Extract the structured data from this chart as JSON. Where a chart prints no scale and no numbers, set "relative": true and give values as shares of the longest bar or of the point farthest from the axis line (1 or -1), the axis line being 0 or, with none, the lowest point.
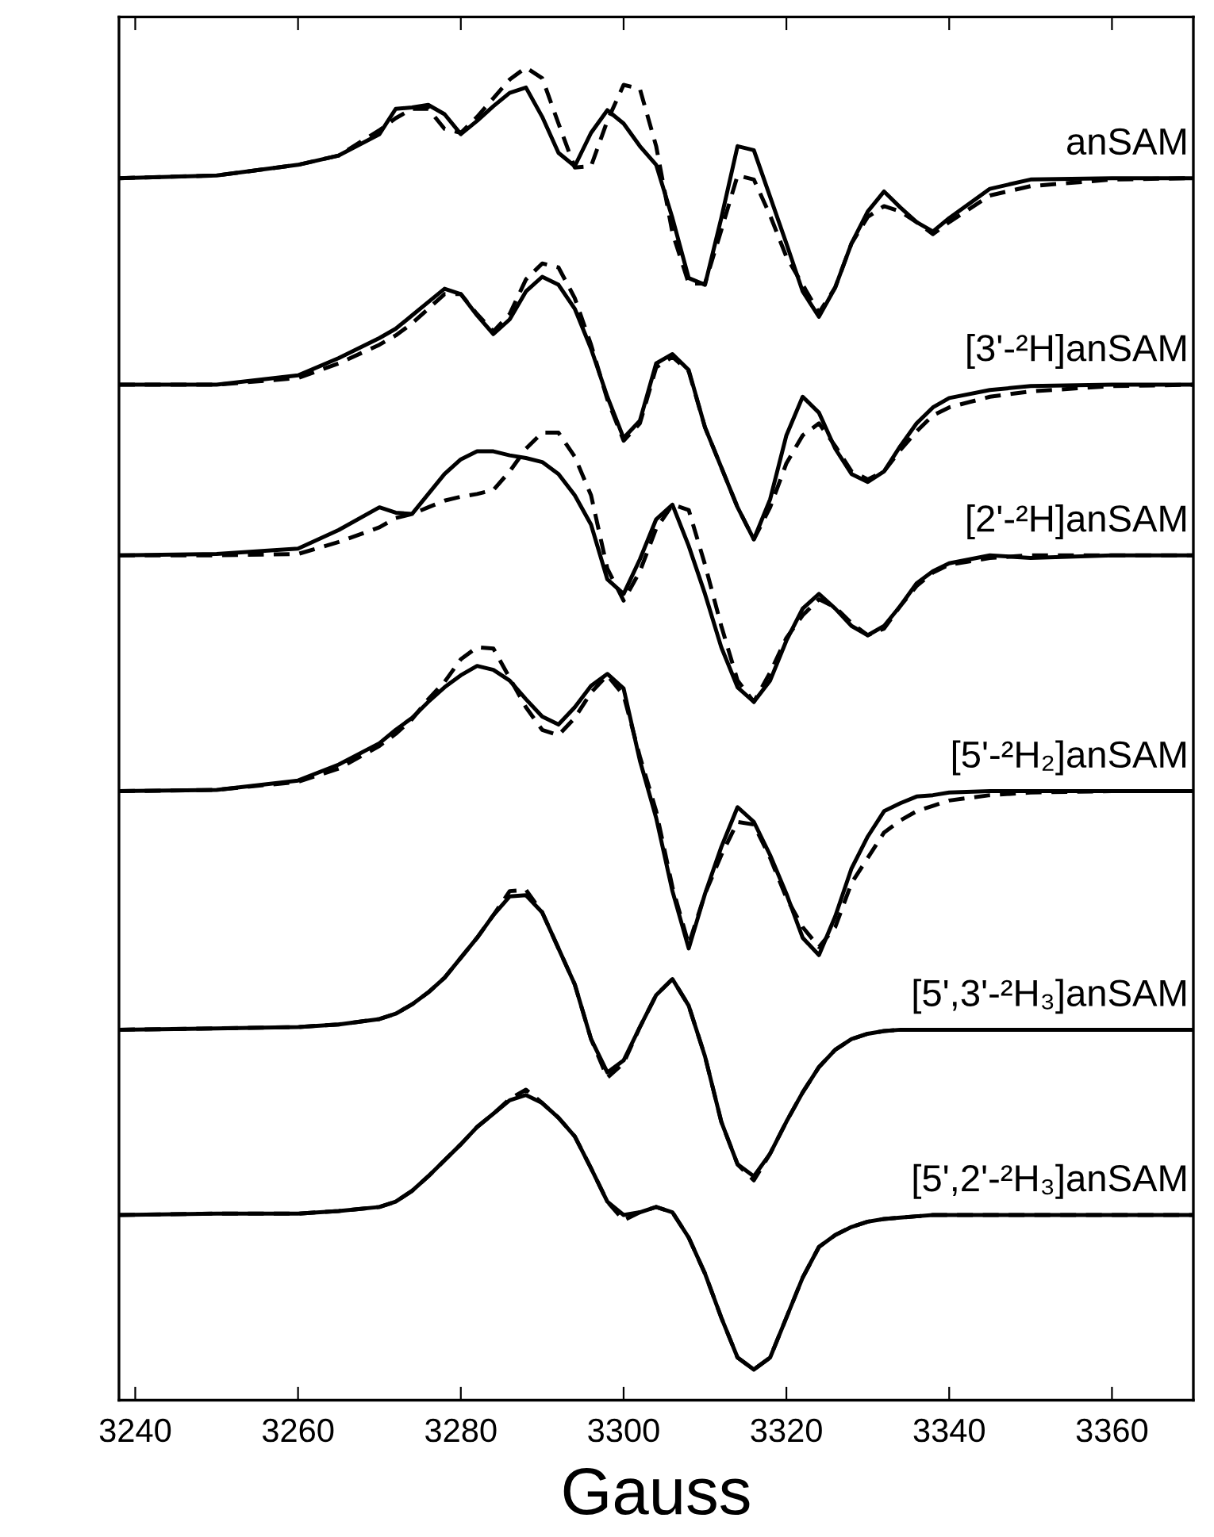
{
  "chart_data": {
    "type": "line",
    "xlabel": "Gauss",
    "relative": true,
    "tick_labels": "x",
    "grid": false,
    "xlim": [
      3238,
      3370
    ],
    "xticks": [
      3240,
      3260,
      3280,
      3300,
      3320,
      3340,
      3360
    ],
    "x": [
      3238,
      3250,
      3260,
      3265,
      3270,
      3272,
      3274,
      3276,
      3278,
      3280,
      3282,
      3284,
      3286,
      3288,
      3290,
      3292,
      3294,
      3296,
      3298,
      3300,
      3302,
      3304,
      3306,
      3308,
      3310,
      3312,
      3314,
      3316,
      3318,
      3320,
      3322,
      3324,
      3326,
      3328,
      3330,
      3332,
      3334,
      3336,
      3338,
      3340,
      3345,
      3350,
      3360,
      3370
    ],
    "series": [
      {
        "name": "anSAM",
        "color": "#000000",
        "line_style": "solid",
        "values": [
          0.917,
          0.919,
          0.927,
          0.934,
          0.95,
          0.969,
          0.97,
          0.972,
          0.965,
          0.95,
          0.96,
          0.971,
          0.981,
          0.985,
          0.963,
          0.936,
          0.926,
          0.951,
          0.968,
          0.958,
          0.941,
          0.927,
          0.887,
          0.842,
          0.837,
          0.887,
          0.941,
          0.938,
          0.903,
          0.868,
          0.832,
          0.813,
          0.835,
          0.868,
          0.892,
          0.907,
          0.895,
          0.884,
          0.877,
          0.887,
          0.909,
          0.916,
          0.917,
          0.917
        ]
      },
      {
        "color": "#000000",
        "line_style": "dashed",
        "values": [
          0.917,
          0.919,
          0.927,
          0.934,
          0.953,
          0.962,
          0.969,
          0.969,
          0.954,
          0.951,
          0.963,
          0.977,
          0.991,
          1.0,
          0.992,
          0.958,
          0.925,
          0.926,
          0.96,
          0.987,
          0.984,
          0.941,
          0.876,
          0.838,
          0.838,
          0.878,
          0.919,
          0.916,
          0.889,
          0.858,
          0.837,
          0.816,
          0.835,
          0.868,
          0.888,
          0.896,
          0.892,
          0.884,
          0.875,
          0.884,
          0.904,
          0.911,
          0.916,
          0.917
        ]
      },
      {
        "name": "[3'-²H]anSAM",
        "color": "#000000",
        "line_style": "solid",
        "values": [
          0.762,
          0.762,
          0.769,
          0.782,
          0.797,
          0.804,
          0.814,
          0.824,
          0.834,
          0.83,
          0.814,
          0.8,
          0.811,
          0.832,
          0.843,
          0.837,
          0.819,
          0.789,
          0.753,
          0.722,
          0.735,
          0.778,
          0.785,
          0.773,
          0.73,
          0.7,
          0.67,
          0.646,
          0.676,
          0.724,
          0.753,
          0.741,
          0.714,
          0.695,
          0.689,
          0.697,
          0.716,
          0.733,
          0.745,
          0.752,
          0.758,
          0.761,
          0.762,
          0.762
        ]
      },
      {
        "color": "#000000",
        "line_style": "dashed",
        "values": [
          0.762,
          0.762,
          0.767,
          0.778,
          0.792,
          0.799,
          0.808,
          0.819,
          0.83,
          0.83,
          0.815,
          0.802,
          0.815,
          0.841,
          0.853,
          0.85,
          0.827,
          0.792,
          0.751,
          0.72,
          0.733,
          0.775,
          0.783,
          0.772,
          0.73,
          0.7,
          0.67,
          0.646,
          0.67,
          0.703,
          0.724,
          0.733,
          0.716,
          0.697,
          0.691,
          0.697,
          0.713,
          0.727,
          0.739,
          0.745,
          0.753,
          0.757,
          0.761,
          0.762
        ]
      },
      {
        "name": "[2'-²H]anSAM",
        "color": "#000000",
        "line_style": "solid",
        "values": [
          0.634,
          0.635,
          0.639,
          0.653,
          0.67,
          0.666,
          0.665,
          0.68,
          0.695,
          0.706,
          0.712,
          0.712,
          0.709,
          0.707,
          0.704,
          0.695,
          0.679,
          0.657,
          0.616,
          0.605,
          0.631,
          0.661,
          0.672,
          0.641,
          0.605,
          0.565,
          0.535,
          0.524,
          0.54,
          0.57,
          0.594,
          0.605,
          0.594,
          0.581,
          0.574,
          0.581,
          0.596,
          0.613,
          0.622,
          0.628,
          0.634,
          0.632,
          0.634,
          0.634
        ]
      },
      {
        "color": "#000000",
        "line_style": "dashed",
        "values": [
          0.634,
          0.634,
          0.635,
          0.644,
          0.655,
          0.662,
          0.665,
          0.67,
          0.675,
          0.678,
          0.68,
          0.683,
          0.697,
          0.714,
          0.726,
          0.726,
          0.708,
          0.679,
          0.624,
          0.6,
          0.622,
          0.654,
          0.672,
          0.668,
          0.627,
          0.581,
          0.54,
          0.524,
          0.546,
          0.572,
          0.589,
          0.601,
          0.595,
          0.583,
          0.574,
          0.579,
          0.596,
          0.611,
          0.621,
          0.627,
          0.632,
          0.634,
          0.634,
          0.634
        ]
      },
      {
        "name": "[5'-²H₂]anSAM",
        "color": "#000000",
        "line_style": "solid",
        "values": [
          0.457,
          0.458,
          0.465,
          0.477,
          0.493,
          0.503,
          0.512,
          0.524,
          0.535,
          0.544,
          0.551,
          0.548,
          0.54,
          0.526,
          0.513,
          0.507,
          0.52,
          0.536,
          0.545,
          0.534,
          0.48,
          0.437,
          0.382,
          0.339,
          0.38,
          0.415,
          0.445,
          0.434,
          0.409,
          0.38,
          0.347,
          0.334,
          0.363,
          0.399,
          0.423,
          0.442,
          0.448,
          0.453,
          0.454,
          0.456,
          0.457,
          0.457,
          0.457,
          0.457
        ]
      },
      {
        "color": "#000000",
        "line_style": "dashed",
        "values": [
          0.457,
          0.458,
          0.464,
          0.474,
          0.491,
          0.5,
          0.511,
          0.526,
          0.539,
          0.556,
          0.565,
          0.564,
          0.542,
          0.52,
          0.503,
          0.499,
          0.512,
          0.531,
          0.544,
          0.529,
          0.483,
          0.442,
          0.385,
          0.342,
          0.38,
          0.409,
          0.434,
          0.432,
          0.407,
          0.377,
          0.355,
          0.34,
          0.355,
          0.388,
          0.407,
          0.426,
          0.435,
          0.442,
          0.446,
          0.45,
          0.454,
          0.456,
          0.457,
          0.457
        ]
      },
      {
        "name": "[5',3'-²H₃]anSAM",
        "color": "#000000",
        "line_style": "solid",
        "values": [
          0.278,
          0.279,
          0.28,
          0.282,
          0.286,
          0.29,
          0.297,
          0.306,
          0.317,
          0.332,
          0.347,
          0.364,
          0.378,
          0.379,
          0.366,
          0.339,
          0.312,
          0.271,
          0.246,
          0.255,
          0.28,
          0.304,
          0.316,
          0.296,
          0.258,
          0.209,
          0.177,
          0.168,
          0.185,
          0.209,
          0.231,
          0.25,
          0.263,
          0.271,
          0.275,
          0.277,
          0.278,
          0.278,
          0.278,
          0.278,
          0.278,
          0.278,
          0.278,
          0.278
        ]
      },
      {
        "color": "#000000",
        "line_style": "dashed",
        "values": [
          0.278,
          0.279,
          0.28,
          0.282,
          0.286,
          0.29,
          0.297,
          0.306,
          0.317,
          0.332,
          0.347,
          0.364,
          0.382,
          0.383,
          0.366,
          0.339,
          0.312,
          0.271,
          0.242,
          0.253,
          0.28,
          0.304,
          0.316,
          0.296,
          0.258,
          0.209,
          0.177,
          0.165,
          0.185,
          0.209,
          0.231,
          0.25,
          0.263,
          0.271,
          0.275,
          0.277,
          0.278,
          0.278,
          0.278,
          0.278,
          0.278,
          0.278,
          0.278,
          0.278
        ]
      },
      {
        "name": "[5',2'-²H₃]anSAM",
        "color": "#000000",
        "line_style": "solid",
        "values": [
          0.139,
          0.14,
          0.14,
          0.142,
          0.145,
          0.149,
          0.157,
          0.168,
          0.18,
          0.192,
          0.205,
          0.215,
          0.225,
          0.229,
          0.223,
          0.212,
          0.198,
          0.174,
          0.149,
          0.139,
          0.141,
          0.145,
          0.141,
          0.122,
          0.095,
          0.062,
          0.032,
          0.023,
          0.032,
          0.062,
          0.092,
          0.115,
          0.124,
          0.13,
          0.134,
          0.136,
          0.137,
          0.138,
          0.139,
          0.139,
          0.139,
          0.139,
          0.139,
          0.139
        ]
      },
      {
        "color": "#000000",
        "line_style": "dashed",
        "values": [
          0.139,
          0.14,
          0.14,
          0.142,
          0.145,
          0.149,
          0.157,
          0.168,
          0.18,
          0.192,
          0.205,
          0.215,
          0.226,
          0.233,
          0.223,
          0.212,
          0.198,
          0.174,
          0.149,
          0.135,
          0.141,
          0.145,
          0.141,
          0.122,
          0.095,
          0.062,
          0.032,
          0.023,
          0.032,
          0.062,
          0.092,
          0.115,
          0.124,
          0.13,
          0.134,
          0.136,
          0.137,
          0.138,
          0.139,
          0.139,
          0.139,
          0.139,
          0.139,
          0.139
        ]
      }
    ]
  }
}
